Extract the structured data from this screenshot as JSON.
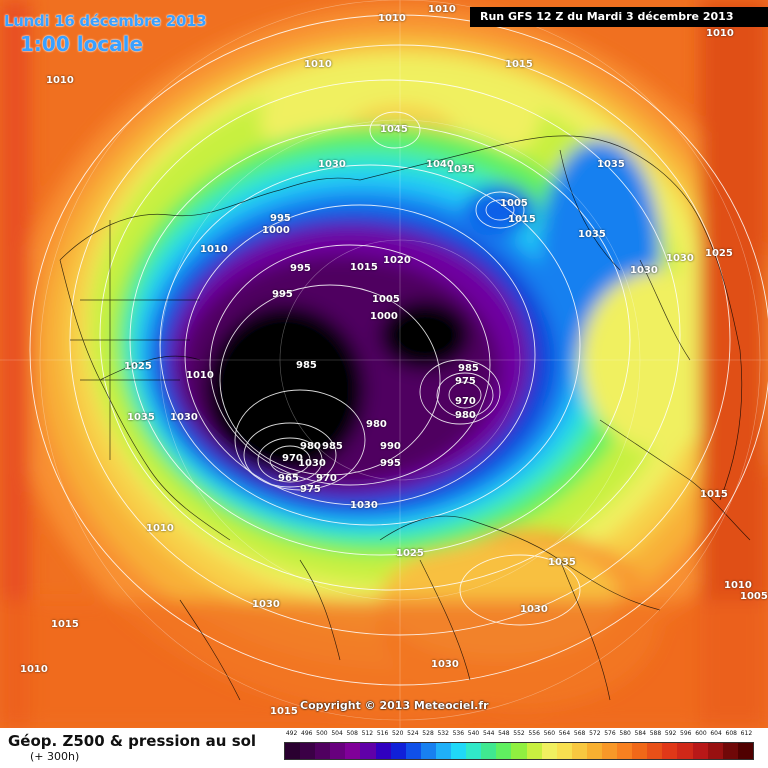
{
  "header": {
    "date": "Lundi 16 décembre 2013",
    "time": "1:00 locale",
    "run": "Run GFS 12 Z du Mardi 3 décembre 2013"
  },
  "copyright": "Copyright © 2013 Meteociel.fr",
  "legend": {
    "title": "Géop. Z500 & pression au sol",
    "subtitle": "(+ 300h)",
    "scale_values": [
      "492",
      "496",
      "500",
      "504",
      "508",
      "512",
      "516",
      "520",
      "524",
      "528",
      "532",
      "536",
      "540",
      "544",
      "548",
      "552",
      "556",
      "560",
      "564",
      "568",
      "572",
      "576",
      "580",
      "584",
      "588",
      "592",
      "596",
      "600",
      "604",
      "608",
      "612"
    ],
    "scale_colors": [
      "#2a0030",
      "#3b0046",
      "#500060",
      "#68007e",
      "#800099",
      "#6000a8",
      "#3000c0",
      "#1020d8",
      "#1050e8",
      "#1880f0",
      "#20b0f8",
      "#20d8f8",
      "#30e8c8",
      "#40e890",
      "#60f060",
      "#90f040",
      "#c8f040",
      "#f0f060",
      "#f8e050",
      "#f8c840",
      "#f8b030",
      "#f89828",
      "#f88020",
      "#f06818",
      "#e85018",
      "#e03818",
      "#d02818",
      "#b81818",
      "#981010",
      "#700808",
      "#500000"
    ]
  },
  "map": {
    "pressure_labels": [
      "1010",
      "1010",
      "1010",
      "1010",
      "1015",
      "1010",
      "1045",
      "1030",
      "1040",
      "1035",
      "1035",
      "1005",
      "1015",
      "1035",
      "1030",
      "1030",
      "1025",
      "995",
      "1000",
      "1015",
      "1020",
      "1010",
      "995",
      "995",
      "1005",
      "1000",
      "985",
      "985",
      "975",
      "970",
      "980",
      "980",
      "985",
      "990",
      "995",
      "980",
      "970",
      "965",
      "975",
      "970",
      "1025",
      "1010",
      "1035",
      "1030",
      "1010",
      "1035",
      "1015",
      "1025",
      "1030",
      "1010",
      "1005",
      "1015",
      "1030",
      "1030",
      "1015",
      "1010",
      "1030",
      "1030"
    ]
  },
  "colors": {
    "run_bg": "#000000",
    "title_color": "#3aa0ff"
  }
}
